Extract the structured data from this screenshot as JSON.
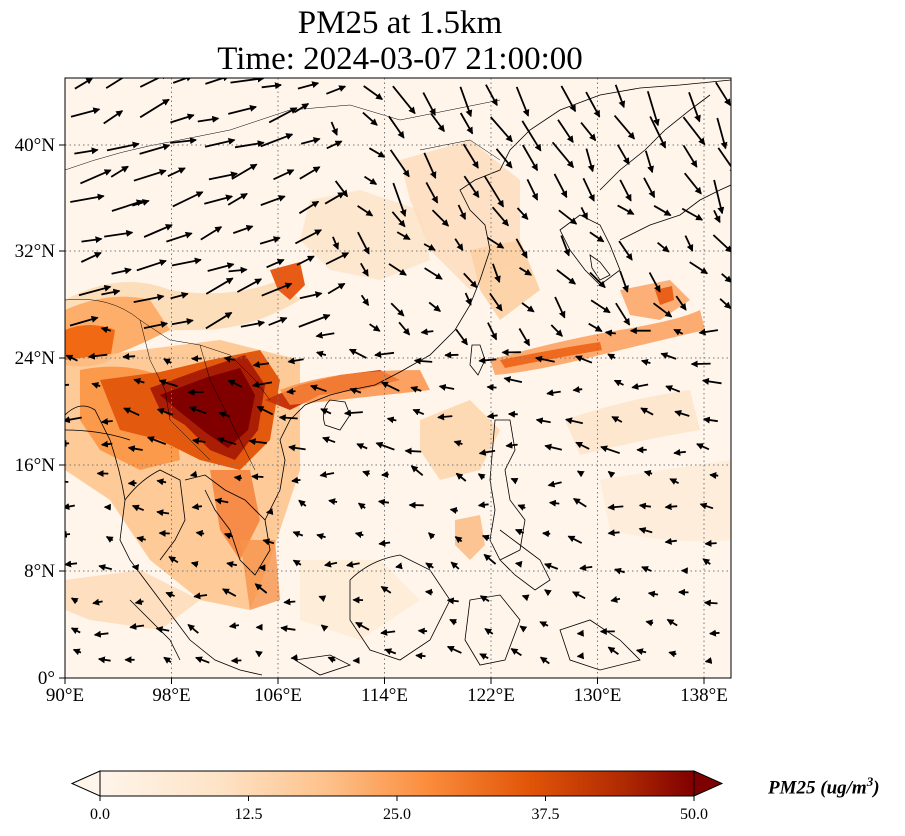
{
  "title": {
    "line1": "PM25 at 1.5km",
    "line2": "Time: 2024-03-07 21:00:00"
  },
  "map": {
    "lon_range": [
      90,
      140
    ],
    "lat_range": [
      0,
      45
    ],
    "lon_ticks": [
      "90°E",
      "98°E",
      "106°E",
      "114°E",
      "122°E",
      "130°E",
      "138°E"
    ],
    "lat_ticks": [
      "0°",
      "8°N",
      "16°N",
      "24°N",
      "32°N",
      "40°N"
    ],
    "gridlines": true
  },
  "colorbar": {
    "label": "PM25 (ug/m",
    "label_sup": "3",
    "label_close": ")",
    "ticks": [
      "0.0",
      "12.5",
      "25.0",
      "37.5",
      "50.0"
    ],
    "range": [
      0,
      50
    ],
    "extend": "both",
    "colors": [
      "#fff5eb",
      "#fdd8b0",
      "#fdab67",
      "#f3701b",
      "#c63d02",
      "#7f0000"
    ]
  }
}
